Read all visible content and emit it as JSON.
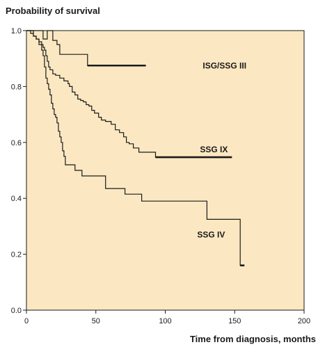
{
  "chart_data": {
    "type": "line",
    "step": true,
    "ylabel": "Probability of survival",
    "xlabel": "Time from diagnosis, months",
    "xlim": [
      0,
      200
    ],
    "ylim": [
      0,
      1
    ],
    "xticks": [
      0,
      50,
      100,
      150,
      200
    ],
    "yticks": [
      0.0,
      0.2,
      0.4,
      0.6,
      0.8,
      1.0
    ],
    "xtick_labels": [
      "0",
      "50",
      "100",
      "150",
      "200"
    ],
    "ytick_labels": [
      "0.0",
      "0.2",
      "0.4",
      "0.6",
      "0.8",
      "1.0"
    ],
    "grid": false,
    "background_color": "#fbe8c2",
    "line_color": "#1a1a1a",
    "series": [
      {
        "name": "ISG/SSG III",
        "points": [
          [
            0,
            1.0
          ],
          [
            12,
            1.0
          ],
          [
            12,
            0.97
          ],
          [
            15,
            0.97
          ],
          [
            15,
            1.0
          ],
          [
            19,
            1.0
          ],
          [
            19,
            0.965
          ],
          [
            22,
            0.965
          ],
          [
            22,
            0.95
          ],
          [
            24,
            0.95
          ],
          [
            24,
            0.915
          ],
          [
            44,
            0.915
          ],
          [
            44,
            0.875
          ],
          [
            86,
            0.875
          ]
        ],
        "bold_tail_from": 44
      },
      {
        "name": "SSG IX",
        "points": [
          [
            0,
            1.0
          ],
          [
            3,
            1.0
          ],
          [
            3,
            0.99
          ],
          [
            5,
            0.99
          ],
          [
            5,
            0.98
          ],
          [
            7,
            0.98
          ],
          [
            7,
            0.97
          ],
          [
            9,
            0.97
          ],
          [
            9,
            0.96
          ],
          [
            11,
            0.96
          ],
          [
            11,
            0.95
          ],
          [
            12,
            0.95
          ],
          [
            12,
            0.94
          ],
          [
            13,
            0.94
          ],
          [
            13,
            0.93
          ],
          [
            14,
            0.93
          ],
          [
            14,
            0.91
          ],
          [
            15,
            0.91
          ],
          [
            15,
            0.89
          ],
          [
            16,
            0.89
          ],
          [
            16,
            0.87
          ],
          [
            17,
            0.87
          ],
          [
            17,
            0.86
          ],
          [
            19,
            0.86
          ],
          [
            19,
            0.845
          ],
          [
            21,
            0.845
          ],
          [
            21,
            0.84
          ],
          [
            24,
            0.84
          ],
          [
            24,
            0.83
          ],
          [
            27,
            0.83
          ],
          [
            27,
            0.82
          ],
          [
            30,
            0.82
          ],
          [
            30,
            0.81
          ],
          [
            31,
            0.81
          ],
          [
            31,
            0.8
          ],
          [
            33,
            0.8
          ],
          [
            33,
            0.78
          ],
          [
            35,
            0.78
          ],
          [
            35,
            0.77
          ],
          [
            37,
            0.77
          ],
          [
            37,
            0.755
          ],
          [
            39,
            0.755
          ],
          [
            39,
            0.75
          ],
          [
            41,
            0.75
          ],
          [
            41,
            0.745
          ],
          [
            43,
            0.745
          ],
          [
            43,
            0.735
          ],
          [
            45,
            0.735
          ],
          [
            45,
            0.73
          ],
          [
            47,
            0.73
          ],
          [
            47,
            0.715
          ],
          [
            49,
            0.715
          ],
          [
            49,
            0.705
          ],
          [
            52,
            0.705
          ],
          [
            52,
            0.69
          ],
          [
            54,
            0.69
          ],
          [
            54,
            0.68
          ],
          [
            57,
            0.68
          ],
          [
            57,
            0.675
          ],
          [
            61,
            0.675
          ],
          [
            61,
            0.665
          ],
          [
            64,
            0.665
          ],
          [
            64,
            0.645
          ],
          [
            67,
            0.645
          ],
          [
            67,
            0.635
          ],
          [
            70,
            0.635
          ],
          [
            70,
            0.62
          ],
          [
            72,
            0.62
          ],
          [
            72,
            0.6
          ],
          [
            74,
            0.6
          ],
          [
            74,
            0.595
          ],
          [
            77,
            0.595
          ],
          [
            77,
            0.58
          ],
          [
            81,
            0.58
          ],
          [
            81,
            0.565
          ],
          [
            93,
            0.565
          ],
          [
            93,
            0.547
          ],
          [
            148,
            0.547
          ]
        ],
        "bold_tail_from": 93
      },
      {
        "name": "SSG IV",
        "points": [
          [
            0,
            1.0
          ],
          [
            5,
            1.0
          ],
          [
            5,
            0.98
          ],
          [
            7,
            0.98
          ],
          [
            7,
            0.97
          ],
          [
            9,
            0.97
          ],
          [
            9,
            0.95
          ],
          [
            11,
            0.95
          ],
          [
            11,
            0.93
          ],
          [
            12,
            0.93
          ],
          [
            12,
            0.91
          ],
          [
            13,
            0.91
          ],
          [
            13,
            0.87
          ],
          [
            14,
            0.87
          ],
          [
            14,
            0.83
          ],
          [
            15,
            0.83
          ],
          [
            15,
            0.81
          ],
          [
            16,
            0.81
          ],
          [
            16,
            0.79
          ],
          [
            17,
            0.79
          ],
          [
            17,
            0.77
          ],
          [
            18,
            0.77
          ],
          [
            18,
            0.74
          ],
          [
            19,
            0.74
          ],
          [
            19,
            0.72
          ],
          [
            20,
            0.72
          ],
          [
            20,
            0.7
          ],
          [
            21,
            0.7
          ],
          [
            21,
            0.69
          ],
          [
            22,
            0.69
          ],
          [
            22,
            0.67
          ],
          [
            23,
            0.67
          ],
          [
            23,
            0.64
          ],
          [
            24,
            0.64
          ],
          [
            24,
            0.62
          ],
          [
            25,
            0.62
          ],
          [
            25,
            0.6
          ],
          [
            26,
            0.6
          ],
          [
            26,
            0.57
          ],
          [
            27,
            0.57
          ],
          [
            27,
            0.55
          ],
          [
            28,
            0.55
          ],
          [
            28,
            0.52
          ],
          [
            35,
            0.52
          ],
          [
            35,
            0.5
          ],
          [
            40,
            0.5
          ],
          [
            40,
            0.48
          ],
          [
            57,
            0.48
          ],
          [
            57,
            0.435
          ],
          [
            71,
            0.435
          ],
          [
            71,
            0.415
          ],
          [
            83,
            0.415
          ],
          [
            83,
            0.39
          ],
          [
            130,
            0.39
          ],
          [
            130,
            0.325
          ],
          [
            154,
            0.325
          ],
          [
            154,
            0.16
          ],
          [
            157,
            0.16
          ]
        ],
        "bold_tail_from": 154
      }
    ],
    "annotations": [
      {
        "text": "ISG/SSG III",
        "x": 127,
        "y": 0.875,
        "series": 0
      },
      {
        "text": "SSG IX",
        "x": 125,
        "y": 0.575,
        "series": 1
      },
      {
        "text": "SSG IV",
        "x": 123,
        "y": 0.27,
        "series": 2
      }
    ]
  }
}
